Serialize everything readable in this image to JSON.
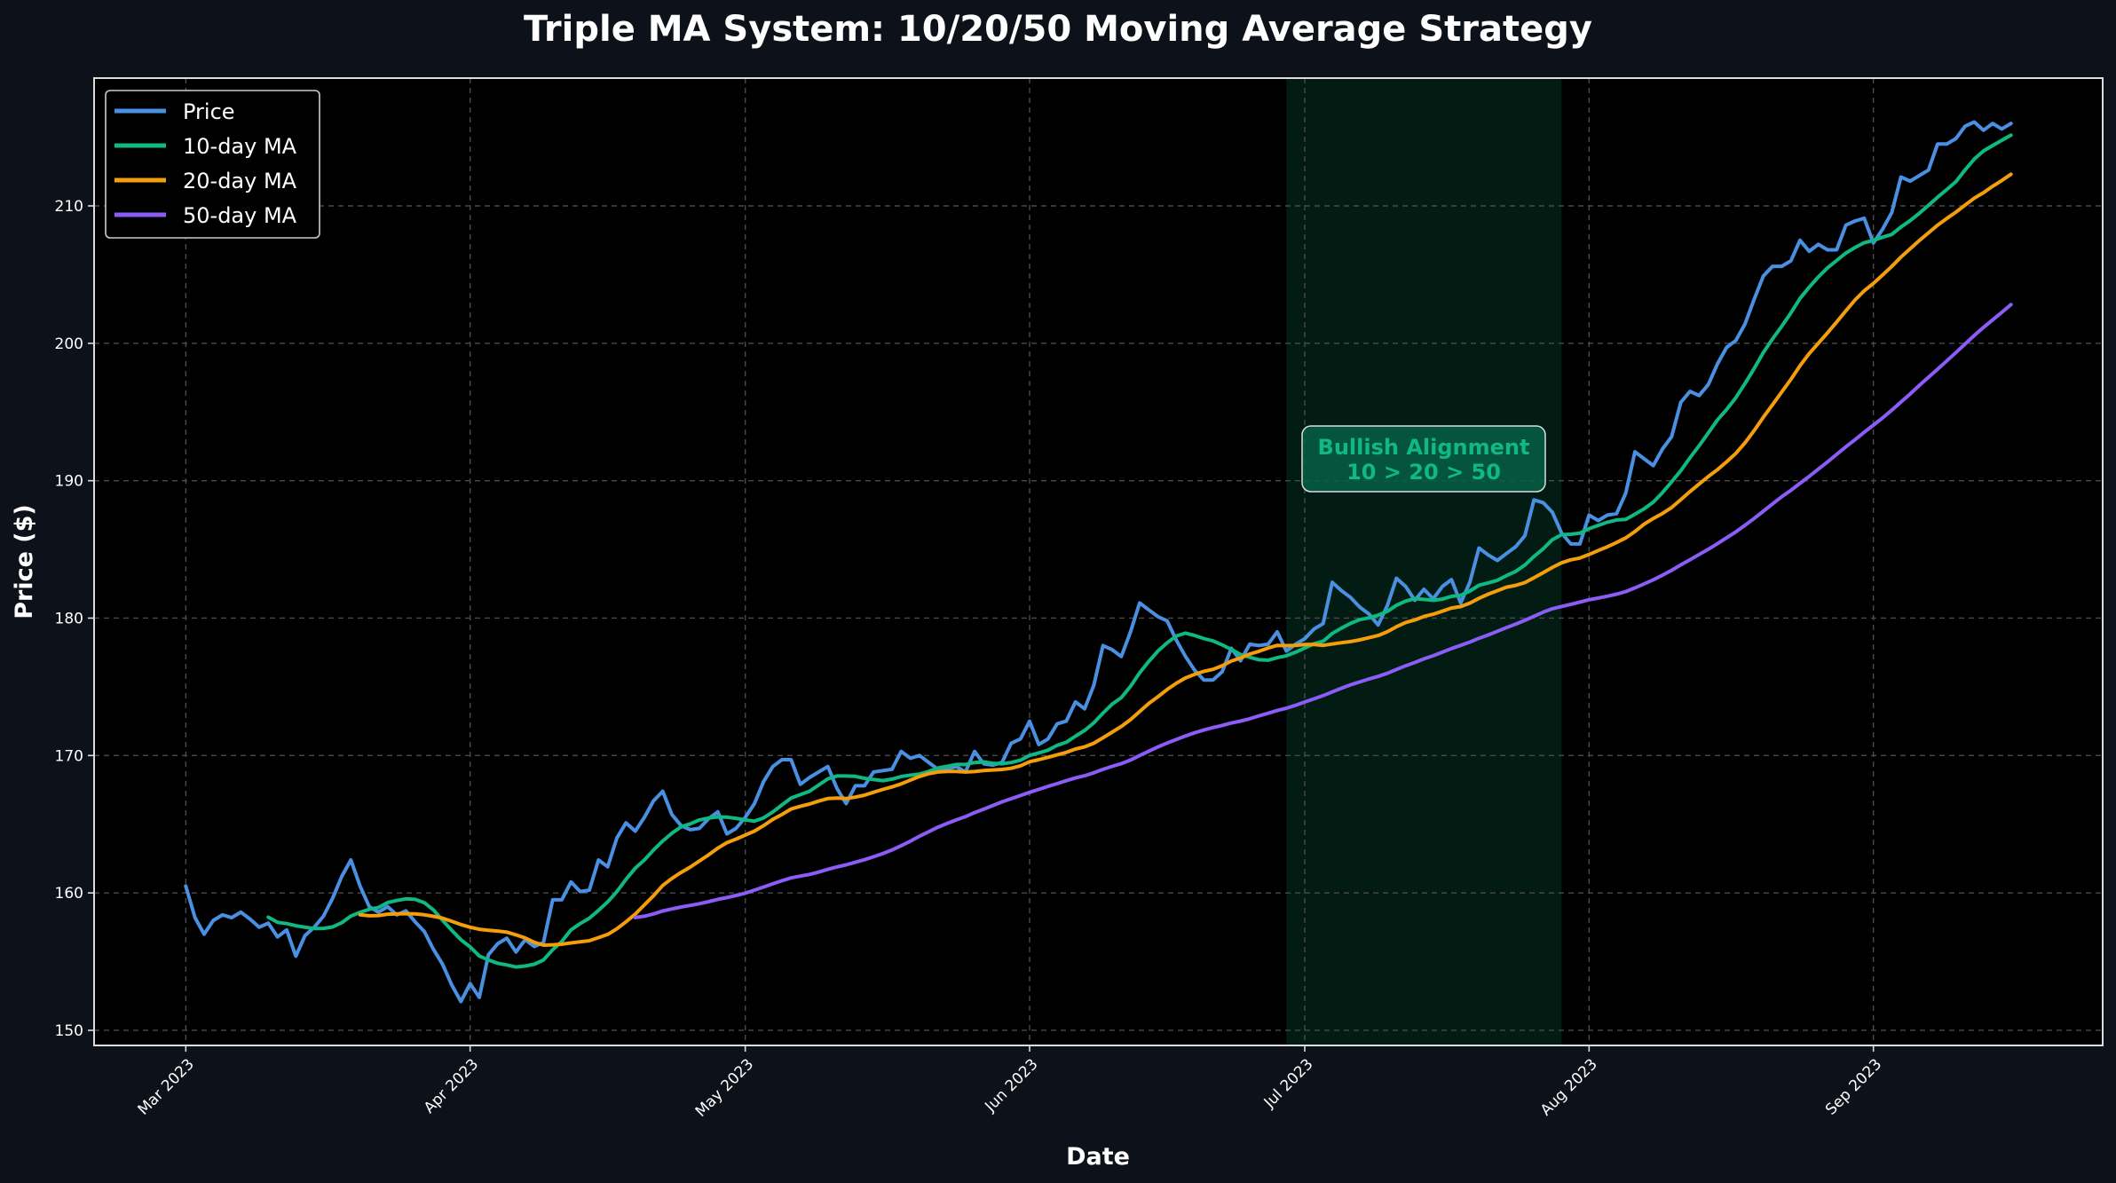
{
  "chart_data": {
    "type": "line",
    "title": "Triple MA System: 10/20/50 Moving Average Strategy",
    "xlabel": "Date",
    "ylabel": "Price ($)",
    "x_start": "2023-03-01",
    "x_step": "1 day",
    "xlim": [
      "2023-02-19",
      "2023-09-26"
    ],
    "ylim": [
      148.9,
      219.3
    ],
    "x_ticks": [
      "Mar 2023",
      "Apr 2023",
      "May 2023",
      "Jun 2023",
      "Jul 2023",
      "Aug 2023",
      "Sep 2023"
    ],
    "x_tick_dates": [
      "2023-03-01",
      "2023-04-01",
      "2023-05-01",
      "2023-06-01",
      "2023-07-01",
      "2023-08-01",
      "2023-09-01"
    ],
    "y_ticks": [
      150,
      160,
      170,
      180,
      190,
      200,
      210
    ],
    "grid": true,
    "legend_position": "top-left",
    "series": [
      {
        "name": "Price",
        "color": "#4a90e2",
        "window": 1
      },
      {
        "name": "10-day MA",
        "color": "#10b981",
        "window": 10
      },
      {
        "name": "20-day MA",
        "color": "#f59e0b",
        "window": 20
      },
      {
        "name": "50-day MA",
        "color": "#8b5cf6",
        "window": 50
      }
    ],
    "price": [
      160.5,
      158.2,
      157.0,
      158.0,
      158.4,
      158.2,
      158.6,
      158.1,
      157.5,
      157.8,
      156.8,
      157.3,
      155.4,
      156.9,
      157.5,
      158.3,
      159.6,
      161.2,
      162.4,
      160.5,
      159.0,
      158.6,
      159.0,
      158.4,
      158.7,
      157.9,
      157.2,
      155.9,
      154.8,
      153.3,
      152.1,
      153.4,
      152.4,
      155.5,
      156.3,
      156.7,
      155.7,
      156.6,
      156.1,
      156.4,
      159.5,
      159.5,
      160.8,
      160.1,
      160.2,
      162.4,
      161.9,
      164.0,
      165.1,
      164.5,
      165.5,
      166.7,
      167.4,
      165.7,
      164.9,
      164.6,
      164.7,
      165.4,
      165.9,
      164.3,
      164.7,
      165.5,
      166.5,
      168.1,
      169.2,
      169.7,
      169.7,
      167.9,
      168.4,
      168.8,
      169.2,
      167.6,
      166.5,
      167.8,
      167.8,
      168.8,
      168.9,
      169.0,
      170.3,
      169.8,
      170.0,
      169.5,
      169.0,
      169.0,
      169.2,
      168.8,
      170.3,
      169.4,
      169.3,
      169.5,
      170.9,
      171.2,
      172.5,
      170.8,
      171.2,
      172.3,
      172.5,
      173.9,
      173.4,
      175.1,
      178.0,
      177.7,
      177.2,
      179.0,
      181.1,
      180.6,
      180.1,
      179.8,
      178.4,
      177.2,
      176.2,
      175.5,
      175.5,
      176.1,
      177.8,
      176.9,
      178.1,
      178.0,
      178.1,
      179.0,
      177.6,
      178.1,
      178.5,
      179.2,
      179.6,
      182.6,
      182.0,
      181.5,
      180.8,
      180.3,
      179.5,
      180.9,
      182.9,
      182.3,
      181.3,
      182.1,
      181.4,
      182.3,
      182.8,
      181.1,
      182.6,
      185.1,
      184.6,
      184.2,
      184.7,
      185.2,
      186.0,
      188.6,
      188.4,
      187.7,
      186.2,
      185.4,
      185.4,
      187.5,
      187.1,
      187.5,
      187.6,
      189.1,
      192.1,
      191.6,
      191.1,
      192.3,
      193.2,
      195.7,
      196.5,
      196.2,
      197.0,
      198.5,
      199.7,
      200.2,
      201.4,
      203.2,
      204.9,
      205.6,
      205.6,
      206.0,
      207.5,
      206.7,
      207.2,
      206.8,
      206.8,
      208.6,
      208.9,
      209.1,
      207.3,
      208.3,
      209.5,
      212.1,
      211.8,
      212.2,
      212.6,
      214.5,
      214.5,
      214.9,
      215.8,
      216.1,
      215.5,
      216.0,
      215.6,
      216.0
    ],
    "highlight": {
      "start": "2023-06-29",
      "end": "2023-07-29",
      "color": "#10b981",
      "annotation_line1": "Bullish Alignment",
      "annotation_line2": "10 > 20 > 50"
    }
  },
  "colors": {
    "figure_bg": "#0d111a",
    "axes_bg": "#000000",
    "text": "#ffffff"
  }
}
